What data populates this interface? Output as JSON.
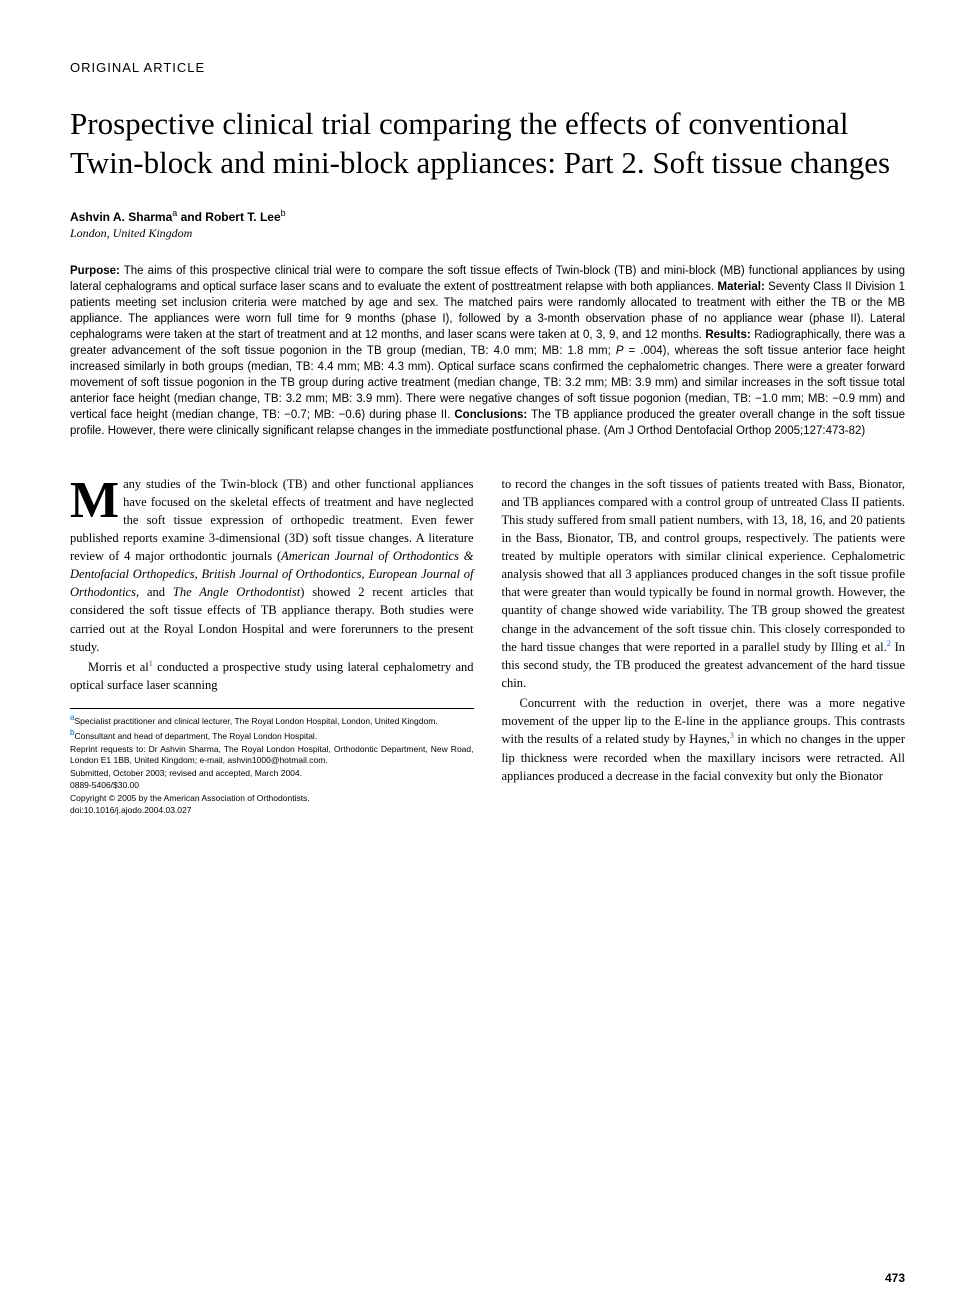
{
  "meta": {
    "article_type": "ORIGINAL ARTICLE",
    "title": "Prospective clinical trial comparing the effects of conventional Twin-block and mini-block appliances: Part 2. Soft tissue changes",
    "authors_prefix": "Ashvin A. Sharma",
    "author_a_sup": "a",
    "authors_and": " and Robert T. Lee",
    "author_b_sup": "b",
    "location": "London, United Kingdom",
    "page_number": "473"
  },
  "abstract": {
    "purpose_label": "Purpose:",
    "purpose": " The aims of this prospective clinical trial were to compare the soft tissue effects of Twin-block (TB) and mini-block (MB) functional appliances by using lateral cephalograms and optical surface laser scans and to evaluate the extent of posttreatment relapse with both appliances. ",
    "material_label": "Material:",
    "material": " Seventy Class II Division 1 patients meeting set inclusion criteria were matched by age and sex. The matched pairs were randomly allocated to treatment with either the TB or the MB appliance. The appliances were worn full time for 9 months (phase I), followed by a 3-month observation phase of no appliance wear (phase II). Lateral cephalograms were taken at the start of treatment and at 12 months, and laser scans were taken at 0, 3, 9, and 12 months. ",
    "results_label": "Results:",
    "results_1": " Radiographically, there was a greater advancement of the soft tissue pogonion in the TB group (median, TB: 4.0 mm; MB: 1.8 mm; ",
    "results_p": "P",
    "results_2": " = .004), whereas the soft tissue anterior face height increased similarly in both groups (median, TB: 4.4 mm; MB: 4.3 mm). Optical surface scans confirmed the cephalometric changes. There were a greater forward movement of soft tissue pogonion in the TB group during active treatment (median change, TB: 3.2 mm; MB: 3.9 mm) and similar increases in the soft tissue total anterior face height (median change, TB: 3.2 mm; MB: 3.9 mm). There were negative changes of soft tissue pogonion (median, TB: −1.0 mm; MB: −0.9 mm) and vertical face height (median change, TB: −0.7; MB: −0.6) during phase II. ",
    "conclusions_label": "Conclusions:",
    "conclusions": " The TB appliance produced the greater overall change in the soft tissue profile. However, there were clinically significant relapse changes in the immediate postfunctional phase. (Am J Orthod Dentofacial Orthop 2005;127:473-82)"
  },
  "body": {
    "dropcap": "M",
    "p1_a": "any studies of the Twin-block (TB) and other functional appliances have focused on the skeletal effects of treatment and have neglected the soft tissue expression of orthopedic treatment. Even fewer published reports examine 3-dimensional (3D) soft tissue changes. A literature review of 4 major orthodontic journals (",
    "p1_j1": "American Journal of Orthodontics & Dentofacial Orthopedics, British Journal of Orthodontics, European Journal of Orthodontics,",
    "p1_b": " and ",
    "p1_j2": "The Angle Orthodontist",
    "p1_c": ") showed 2 recent articles that considered the soft tissue effects of TB appliance therapy. Both studies were carried out at the Royal London Hospital and were forerunners to the present study.",
    "p2_a": "Morris et al",
    "p2_ref1": "1",
    "p2_b": " conducted a prospective study using lateral cephalometry and optical surface laser scanning",
    "p3": "to record the changes in the soft tissues of patients treated with Bass, Bionator, and TB appliances compared with a control group of untreated Class II patients. This study suffered from small patient numbers, with 13, 18, 16, and 20 patients in the Bass, Bionator, TB, and control groups, respectively. The patients were treated by multiple operators with similar clinical experience. Cephalometric analysis showed that all 3 appliances produced changes in the soft tissue profile that were greater than would typically be found in normal growth. However, the quantity of change showed wide variability. The TB group showed the greatest change in the advancement of the soft tissue chin. This closely corresponded to the hard tissue changes that were reported in a parallel study by Illing et al.",
    "p3_ref2": "2",
    "p3_b": " In this second study, the TB produced the greatest advancement of the hard tissue chin.",
    "p4_a": "Concurrent with the reduction in overjet, there was a more negative movement of the upper lip to the E-line in the appliance groups. This contrasts with the results of a related study by Haynes,",
    "p4_ref3": "3",
    "p4_b": " in which no changes in the upper lip thickness were recorded when the maxillary incisors were retracted. All appliances produced a decrease in the facial convexity but only the Bionator"
  },
  "footnotes": {
    "f1_sup": "a",
    "f1": "Specialist practitioner and clinical lecturer, The Royal London Hospital, London, United Kingdom.",
    "f2_sup": "b",
    "f2": "Consultant and head of department, The Royal London Hospital.",
    "f3": "Reprint requests to: Dr Ashvin Sharma, The Royal London Hospital, Orthodontic Department, New Road, London E1 1BB, United Kingdom; e-mail, ashvin1000@hotmail.com.",
    "f4": "Submitted, October 2003; revised and accepted, March 2004.",
    "f5": "0889-5406/$30.00",
    "f6": "Copyright © 2005 by the American Association of Orthodontists.",
    "f7": "doi:10.1016/j.ajodo.2004.03.027"
  },
  "colors": {
    "text": "#000000",
    "background": "#ffffff",
    "link": "#0066cc"
  },
  "typography": {
    "title_fontsize": 31,
    "body_fontsize": 12.5,
    "abstract_fontsize": 11.5,
    "footnote_fontsize": 8.5,
    "dropcap_fontsize": 52
  }
}
